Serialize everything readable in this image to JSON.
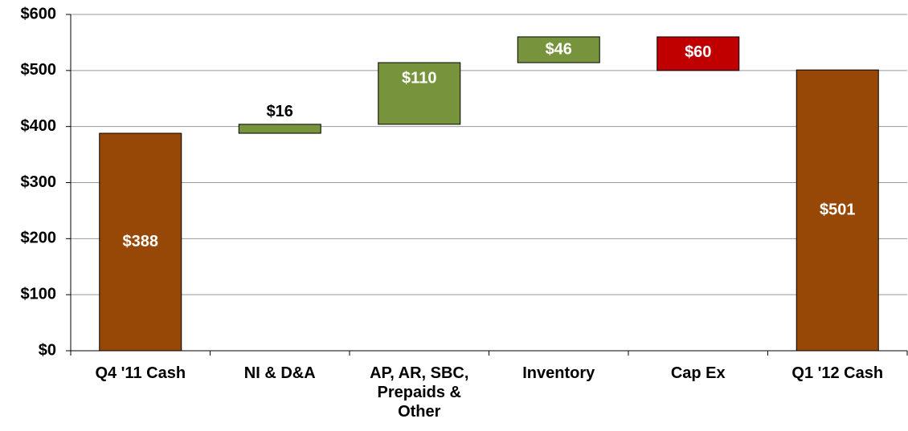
{
  "chart_data": {
    "type": "waterfall",
    "categories": [
      "Q4 '11 Cash",
      "NI & D&A",
      "AP, AR, SBC, Prepaids & Other",
      "Inventory",
      "Cap Ex",
      "Q1 '12 Cash"
    ],
    "values": [
      388,
      16,
      110,
      46,
      -60,
      501
    ],
    "value_labels": [
      "$388",
      "$16",
      "$110",
      "$46",
      "$60",
      "$501"
    ],
    "totals": [
      true,
      false,
      false,
      false,
      false,
      true
    ],
    "colors": {
      "total": "#974706",
      "increase": "#77933c",
      "decrease": "#c00000"
    },
    "ylim": [
      0,
      600
    ],
    "yticks": [
      {
        "value": 0,
        "label": "$0"
      },
      {
        "value": 100,
        "label": "$100"
      },
      {
        "value": 200,
        "label": "$200"
      },
      {
        "value": 300,
        "label": "$300"
      },
      {
        "value": 400,
        "label": "$400"
      },
      {
        "value": 500,
        "label": "$500"
      },
      {
        "value": 600,
        "label": "$600"
      }
    ],
    "grid": true
  }
}
